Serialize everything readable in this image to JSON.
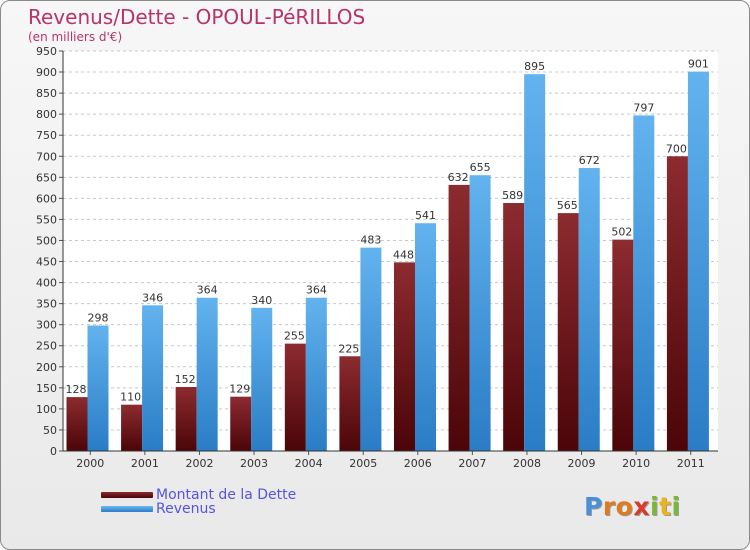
{
  "chart_data": {
    "type": "bar",
    "title": "Revenus/Dette - OPOUL-PéRILLOS",
    "subtitle": "(en milliers d'€)",
    "xlabel": "",
    "ylabel": "",
    "ylim": [
      0,
      950
    ],
    "yticks": [
      0,
      50,
      100,
      150,
      200,
      250,
      300,
      350,
      400,
      450,
      500,
      550,
      600,
      650,
      700,
      750,
      800,
      850,
      900,
      950
    ],
    "categories": [
      "2000",
      "2001",
      "2002",
      "2003",
      "2004",
      "2005",
      "2006",
      "2007",
      "2008",
      "2009",
      "2010",
      "2011"
    ],
    "series": [
      {
        "name": "Montant de la Dette",
        "color": "#6b0e12",
        "values": [
          128,
          110,
          152,
          129,
          255,
          225,
          448,
          632,
          589,
          565,
          502,
          700
        ]
      },
      {
        "name": "Revenus",
        "color": "#4fa3e3",
        "values": [
          298,
          346,
          364,
          340,
          364,
          483,
          541,
          655,
          895,
          672,
          797,
          901
        ]
      }
    ],
    "legend_position": "bottom-left",
    "grid": true
  },
  "logo": {
    "letters": [
      "P",
      "r",
      "o",
      "x",
      "i",
      "t",
      "i"
    ],
    "colors": [
      "#4a90d9",
      "#e07a1f",
      "#e07a1f",
      "#d93a2a",
      "#7bb83a",
      "#e8b41f",
      "#7bb83a"
    ]
  }
}
